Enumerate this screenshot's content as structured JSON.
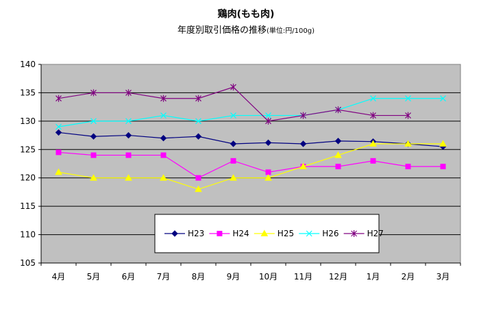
{
  "chart_data": {
    "type": "line",
    "title": "鶏肉(もも肉)",
    "subtitle": "年度別取引価格の推移",
    "subtitle_unit": "(単位:円/100g)",
    "categories": [
      "4月",
      "5月",
      "6月",
      "7月",
      "8月",
      "9月",
      "10月",
      "11月",
      "12月",
      "1月",
      "2月",
      "3月"
    ],
    "ylim": [
      105,
      140
    ],
    "yticks": [
      105,
      110,
      115,
      120,
      125,
      130,
      135,
      140
    ],
    "grid": true,
    "legend_position": "bottom-center (inside plot)",
    "plot_background": "#c0c0c0",
    "series": [
      {
        "name": "H23",
        "color": "#000080",
        "marker": "diamond",
        "values": [
          128,
          127.3,
          127.5,
          127,
          127.3,
          126,
          126.2,
          126,
          126.5,
          126.4,
          126,
          125.5
        ]
      },
      {
        "name": "H24",
        "color": "#ff00ff",
        "marker": "square",
        "values": [
          124.5,
          124,
          124,
          124,
          120,
          123,
          121,
          122,
          122,
          123,
          122,
          122
        ]
      },
      {
        "name": "H25",
        "color": "#ffff00",
        "marker": "triangle",
        "values": [
          121,
          120,
          120,
          120,
          118,
          120,
          120,
          122,
          124,
          126,
          126,
          126
        ]
      },
      {
        "name": "H26",
        "color": "#00ffff",
        "marker": "x",
        "values": [
          129,
          130,
          130,
          131,
          130,
          131,
          131,
          131,
          132,
          134,
          134,
          134
        ]
      },
      {
        "name": "H27",
        "color": "#800080",
        "marker": "star",
        "values": [
          134,
          135,
          135,
          134,
          134,
          136,
          130,
          131,
          132,
          131,
          131,
          null
        ]
      }
    ]
  }
}
